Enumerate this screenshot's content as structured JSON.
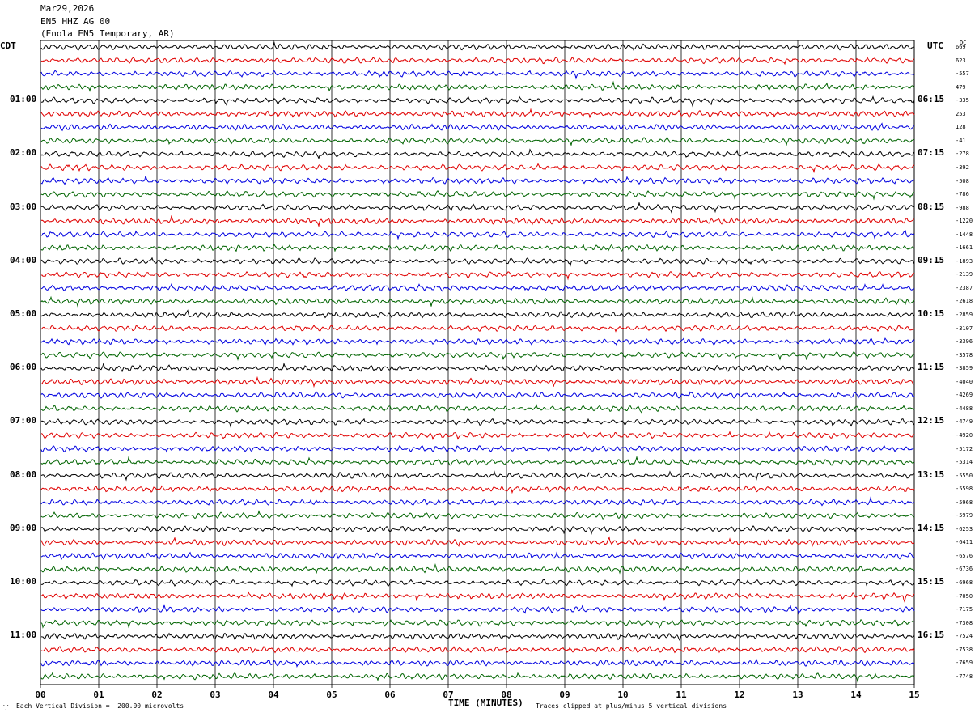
{
  "header": {
    "date": "Mar29,2026",
    "channel": "EN5 HHZ AG 00",
    "station": "(Enola EN5 Temporary, AR)"
  },
  "labels": {
    "left_zone": "CDT",
    "right_zone": "UTC",
    "dc_header": "DC"
  },
  "left_times": [
    "01:00",
    "02:00",
    "03:00",
    "04:00",
    "05:00",
    "06:00",
    "07:00",
    "08:00",
    "09:00",
    "10:00",
    "11:00"
  ],
  "right_times": [
    "06:15",
    "07:15",
    "08:15",
    "09:15",
    "10:15",
    "11:15",
    "12:15",
    "13:15",
    "14:15",
    "15:15",
    "16:15"
  ],
  "dc_offsets": [
    "669",
    "623",
    "-557",
    "479",
    "-335",
    "253",
    "128",
    "-41",
    "-278",
    "-392",
    "-508",
    "-786",
    "-988",
    "-1220",
    "-1448",
    "-1661",
    "-1893",
    "-2139",
    "-2387",
    "-2618",
    "-2859",
    "-3107",
    "-3396",
    "-3578",
    "-3859",
    "-4040",
    "-4269",
    "-4488",
    "-4749",
    "-4920",
    "-5172",
    "-5314",
    "-5550",
    "-5598",
    "-5968",
    "-5979",
    "-6253",
    "-6411",
    "-6576",
    "-6736",
    "-6968",
    "-7050",
    "-7175",
    "-7308",
    "-7524",
    "-7538",
    "-7659",
    "-7748"
  ],
  "x_ticks": [
    "00",
    "01",
    "02",
    "03",
    "04",
    "05",
    "06",
    "07",
    "08",
    "09",
    "10",
    "11",
    "12",
    "13",
    "14",
    "15"
  ],
  "footer": {
    "scale_note": "Each Vertical Division =  200.00 microvolts",
    "axis_title": "TIME (MINUTES)",
    "clip_note": "Traces clipped at plus/minus 5 vertical divisions"
  },
  "chart_data": {
    "type": "line",
    "title": "EN5 HHZ AG 00",
    "xlabel": "TIME (MINUTES)",
    "xlim": [
      0,
      15
    ],
    "trace_count": 48,
    "minutes_per_trace": 15,
    "trace_colors": [
      "#000000",
      "#e00000",
      "#0000e0",
      "#006400"
    ],
    "grid": true
  }
}
